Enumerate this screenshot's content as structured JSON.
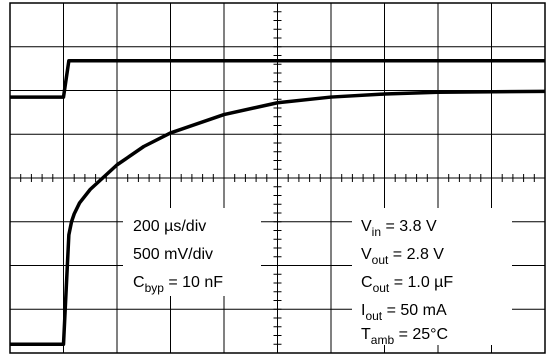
{
  "chart_data": {
    "type": "line",
    "title": "",
    "xlabel": "",
    "ylabel": "",
    "grid": true,
    "grid_divisions": {
      "x": 10,
      "y": 8
    },
    "minor_ticks_per_division": 5,
    "settings_left": {
      "time_div": "200 µs/div",
      "volt_div": "500 mV/div",
      "cbyp_main": "C",
      "cbyp_sub": "byp",
      "cbyp_rest": " = 10 nF"
    },
    "conditions_right": [
      {
        "main": "V",
        "sub": "in",
        "rest": " = 3.8 V"
      },
      {
        "main": "V",
        "sub": "out",
        "rest": " = 2.8 V"
      },
      {
        "main": "C",
        "sub": "out",
        "rest": " = 1.0 µF"
      },
      {
        "main": "I",
        "sub": "out",
        "rest": " = 50 mA"
      },
      {
        "main": "T",
        "sub": "amb",
        "rest": " = 25°C"
      }
    ],
    "series": [
      {
        "key": "enable",
        "x": [
          0,
          1.0,
          1.1,
          10
        ],
        "y": [
          5.85,
          5.85,
          6.68,
          6.68
        ]
      },
      {
        "key": "output",
        "x": [
          0,
          1.0,
          1.1,
          1.15,
          1.2,
          1.3,
          1.5,
          2.0,
          2.5,
          3.0,
          4.0,
          5.0,
          6.0,
          7.0,
          8.0,
          10
        ],
        "y": [
          0.2,
          0.2,
          2.7,
          3.0,
          3.18,
          3.43,
          3.74,
          4.3,
          4.72,
          5.03,
          5.45,
          5.72,
          5.85,
          5.92,
          5.96,
          5.98
        ]
      }
    ]
  }
}
